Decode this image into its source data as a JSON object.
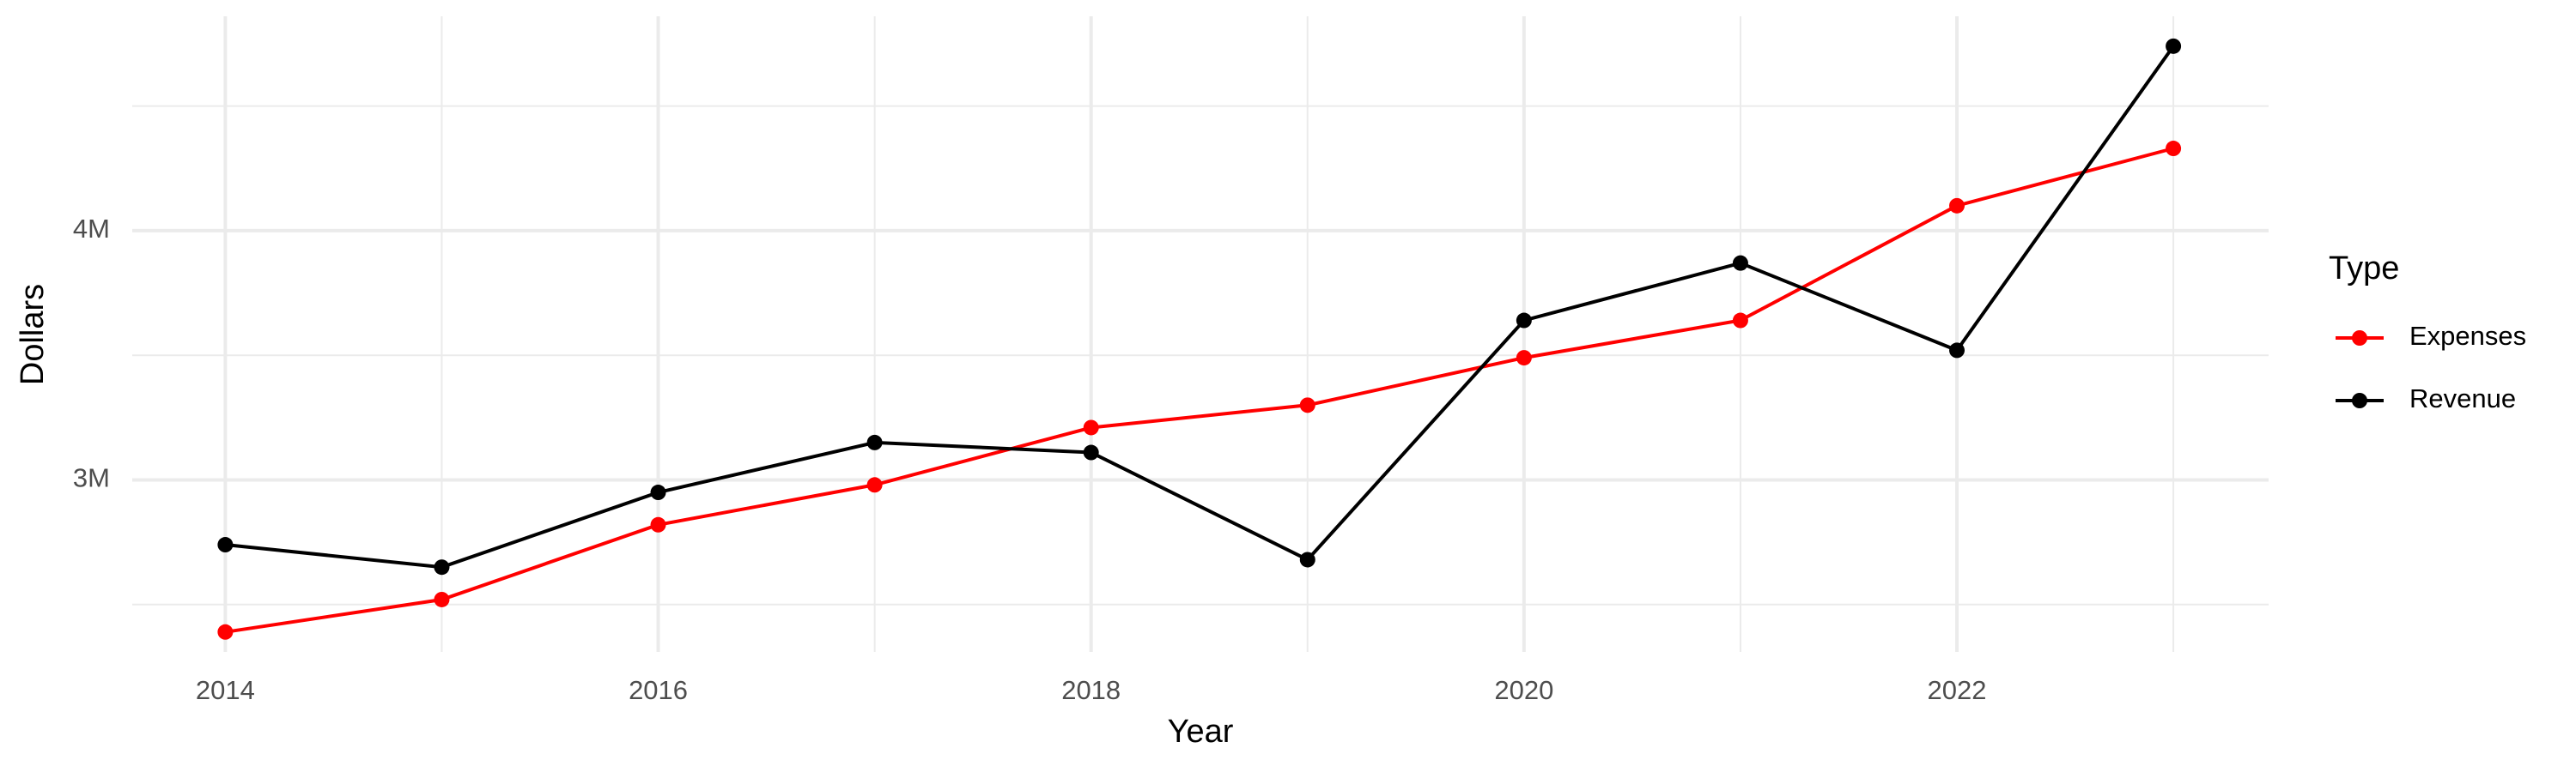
{
  "chart_data": {
    "type": "line",
    "x_label": "Year",
    "y_label": "Dollars",
    "legend_title": "Type",
    "x": [
      2014,
      2015,
      2016,
      2017,
      2018,
      2019,
      2020,
      2021,
      2022,
      2023
    ],
    "series": [
      {
        "name": "Expenses",
        "color": "#ff0000",
        "values": [
          2390000,
          2520000,
          2820000,
          2980000,
          3210000,
          3300000,
          3490000,
          3640000,
          4100000,
          4330000
        ]
      },
      {
        "name": "Revenue",
        "color": "#000000",
        "values": [
          2740000,
          2650000,
          2950000,
          3150000,
          3110000,
          2680000,
          3640000,
          3870000,
          3520000,
          4740000
        ]
      }
    ],
    "xlim": [
      2013.57,
      2023.44
    ],
    "ylim": [
      2310000,
      4860000
    ],
    "xticks": [
      2014,
      2016,
      2018,
      2020,
      2022
    ],
    "xminorticks": [
      2015,
      2017,
      2019,
      2021,
      2023
    ],
    "yticks": [
      {
        "value": 3000000,
        "label": "3M"
      },
      {
        "value": 4000000,
        "label": "4M"
      }
    ],
    "yminorticks": [
      2500000,
      3500000,
      4500000
    ],
    "grid": true,
    "legend": "right"
  }
}
